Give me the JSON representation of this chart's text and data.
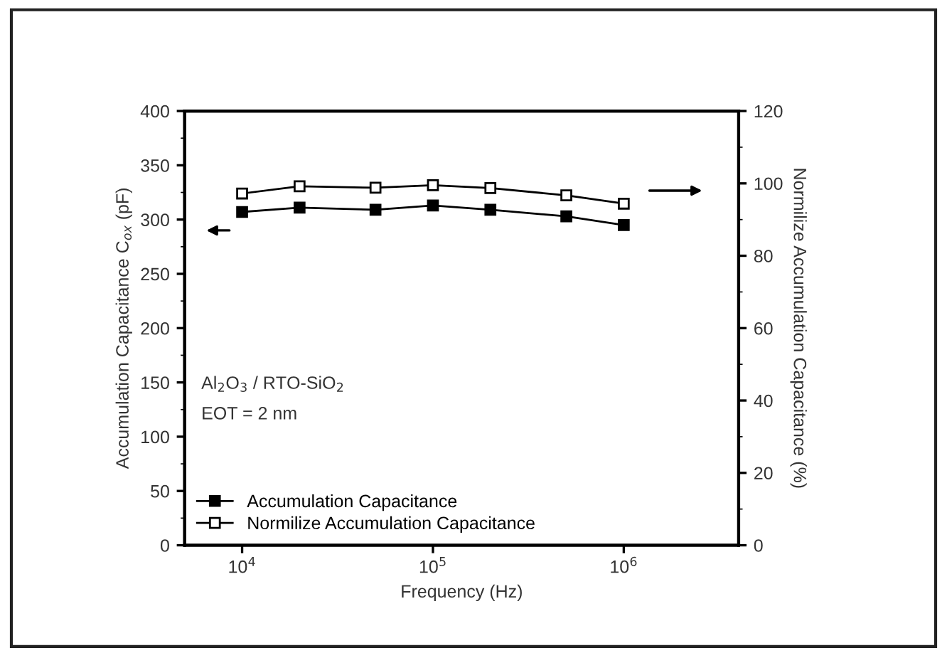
{
  "chart_data": {
    "type": "line",
    "xlabel": "Frequency (Hz)",
    "ylabel": "Accumulation Capacitance C$_{ox}$ (pF)",
    "y2label": "Normilize Accumulation Capacitance (%)",
    "x": [
      10000,
      20000,
      50000,
      100000,
      200000,
      500000,
      1000000
    ],
    "series": [
      {
        "name": "Accumulation Capacitance",
        "color": "#000000",
        "marker": "square",
        "values": [
          307,
          311,
          309,
          313,
          309,
          303,
          295
        ]
      },
      {
        "name": "Normilize Accumulation Capacitance",
        "color": "#000000",
        "marker": "square",
        "axis": "y2",
        "values": [
          97.2,
          99.2,
          98.8,
          99.5,
          98.7,
          96.7,
          94.4
        ]
      }
    ],
    "log": "x",
    "xlim": [
      5000,
      4000000
    ],
    "xticks": [
      {
        "value": 10000,
        "label": "10$^{4}$"
      },
      {
        "value": 100000,
        "label": "10$^{5}$"
      },
      {
        "value": 1000000,
        "label": "10$^{6}$"
      }
    ],
    "ylim": [
      0,
      400
    ],
    "yticks": [
      0,
      50,
      100,
      150,
      200,
      250,
      300,
      350,
      400
    ],
    "y2lim": [
      0,
      120
    ],
    "y2ticks": [
      0,
      20,
      40,
      60,
      80,
      100,
      120
    ],
    "annotations": [
      {
        "text": "Al$_{2}$O$_{3}$ / RTO-SiO$_{2}$"
      },
      {
        "text": "EOT = 2 nm"
      }
    ],
    "grid": false,
    "legend": "bottom left",
    "line_style": "solid"
  }
}
